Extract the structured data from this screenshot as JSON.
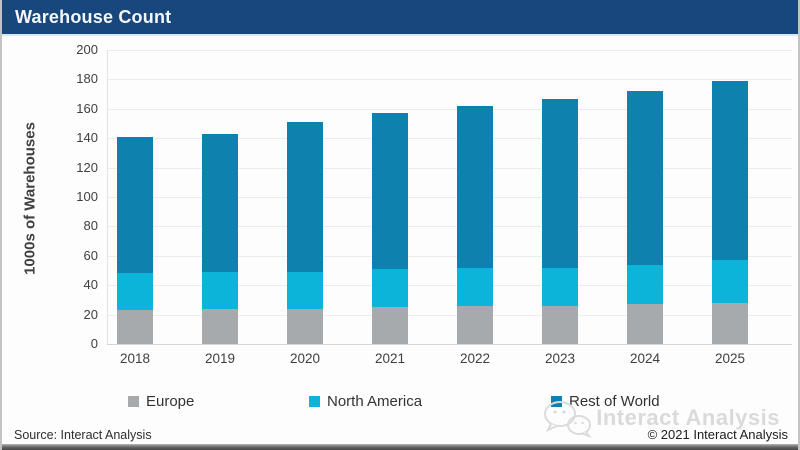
{
  "header": {
    "title": "Warehouse Count"
  },
  "chart_data": {
    "type": "bar",
    "stacked": true,
    "title": "Warehouse Count",
    "xlabel": "",
    "ylabel": "1000s of Warehouses",
    "categories": [
      "2018",
      "2019",
      "2020",
      "2021",
      "2022",
      "2023",
      "2024",
      "2025"
    ],
    "series": [
      {
        "name": "Europe",
        "color": "#a7aaac",
        "values": [
          23,
          24,
          24,
          25,
          26,
          26,
          27,
          28
        ]
      },
      {
        "name": "North America",
        "color": "#0cb4d9",
        "values": [
          25,
          25,
          25,
          26,
          26,
          26,
          27,
          29
        ]
      },
      {
        "name": "Rest of World",
        "color": "#0f81ae",
        "values": [
          93,
          94,
          102,
          106,
          110,
          115,
          118,
          122
        ]
      }
    ],
    "totals": [
      141,
      143,
      151,
      157,
      162,
      167,
      172,
      179
    ],
    "ylim": [
      0,
      200
    ],
    "yticks": [
      0,
      20,
      40,
      60,
      80,
      100,
      120,
      140,
      160,
      180,
      200
    ],
    "grid": "horizontal",
    "legend_position": "bottom"
  },
  "watermark": {
    "text": "Interact Analysis",
    "icon": "wechat-logo"
  },
  "footer": {
    "source": "Source: Interact Analysis",
    "copyright": "© 2021 Interact Analysis"
  },
  "colors": {
    "header_bg": "#17477d",
    "europe": "#a7aaac",
    "north_america": "#0cb4d9",
    "rest_of_world": "#0f81ae",
    "gridline": "#ececec",
    "watermark_text": "#d9dadb"
  }
}
